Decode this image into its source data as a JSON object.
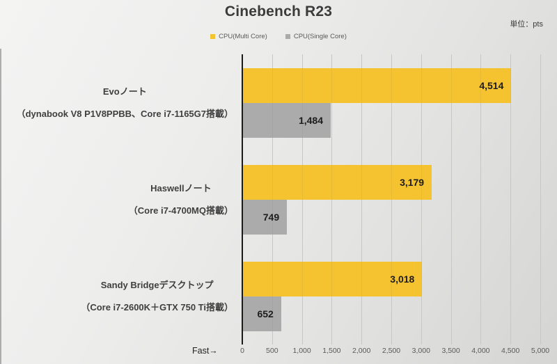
{
  "header": {
    "unit_label": "単位：pts"
  },
  "chart_data": {
    "type": "bar",
    "orientation": "horizontal",
    "title": "Cinebench R23",
    "unit": "pts",
    "fast_label": "Fast→",
    "legend_position": "top-center",
    "grid": true,
    "xlim": [
      0,
      5000
    ],
    "x_tick_step": 500,
    "x_tick_labels": [
      "0",
      "500",
      "1,000",
      "1,500",
      "2,000",
      "2,500",
      "3,000",
      "3,500",
      "4,000",
      "4,500",
      "5,000"
    ],
    "categories": [
      {
        "line1": "Evoノート",
        "line2": "（dynabook V8 P1V8PPBB、Core i7-1165G7搭載）"
      },
      {
        "line1": "Haswellノート",
        "line2": "（Core i7-4700MQ搭載）"
      },
      {
        "line1": "Sandy Bridgeデスクトップ",
        "line2": "（Core i7-2600K＋GTX 750 Ti搭載）"
      }
    ],
    "series": [
      {
        "name": "CPU(Multi Core)",
        "key": "multi-core",
        "color": "#F6C330",
        "values": [
          4514,
          3179,
          3018
        ],
        "labels": [
          "4,514",
          "3,179",
          "3,018"
        ]
      },
      {
        "name": "CPU(Single Core)",
        "key": "single-core",
        "color": "#ABABAB",
        "values": [
          1484,
          749,
          652
        ],
        "labels": [
          "1,484",
          "749",
          "652"
        ]
      }
    ]
  }
}
